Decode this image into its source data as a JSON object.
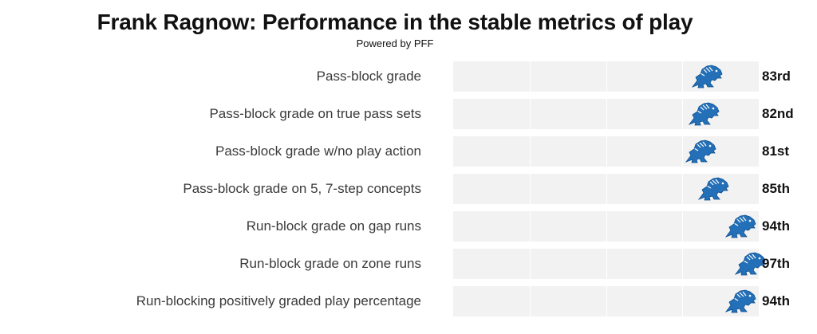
{
  "header": {
    "title": "Frank Ragnow: Performance in the stable metrics of play",
    "subtitle": "Powered by PFF"
  },
  "colors": {
    "track": "#f2f2f2",
    "gridline": "#ffffff",
    "marker": "#2470b8",
    "marker_dark": "#0b4f8f"
  },
  "marker_icon": "detroit-lions-logo-icon",
  "chart_data": {
    "type": "bar",
    "title": "Frank Ragnow: Performance in the stable metrics of play",
    "subtitle": "Powered by PFF",
    "xlabel": "",
    "ylabel": "",
    "xlim": [
      0,
      100
    ],
    "grid": true,
    "legend": "none",
    "categories": [
      "Pass-block grade",
      "Pass-block grade on true pass sets",
      "Pass-block grade w/no play action",
      "Pass-block grade on 5, 7-step concepts",
      "Run-block grade on gap runs",
      "Run-block grade on zone runs",
      "Run-blocking positively graded play percentage"
    ],
    "values": [
      83,
      82,
      81,
      85,
      94,
      97,
      94
    ],
    "rank_labels": [
      "83rd",
      "82nd",
      "81st",
      "85th",
      "94th",
      "97th",
      "94th"
    ]
  }
}
